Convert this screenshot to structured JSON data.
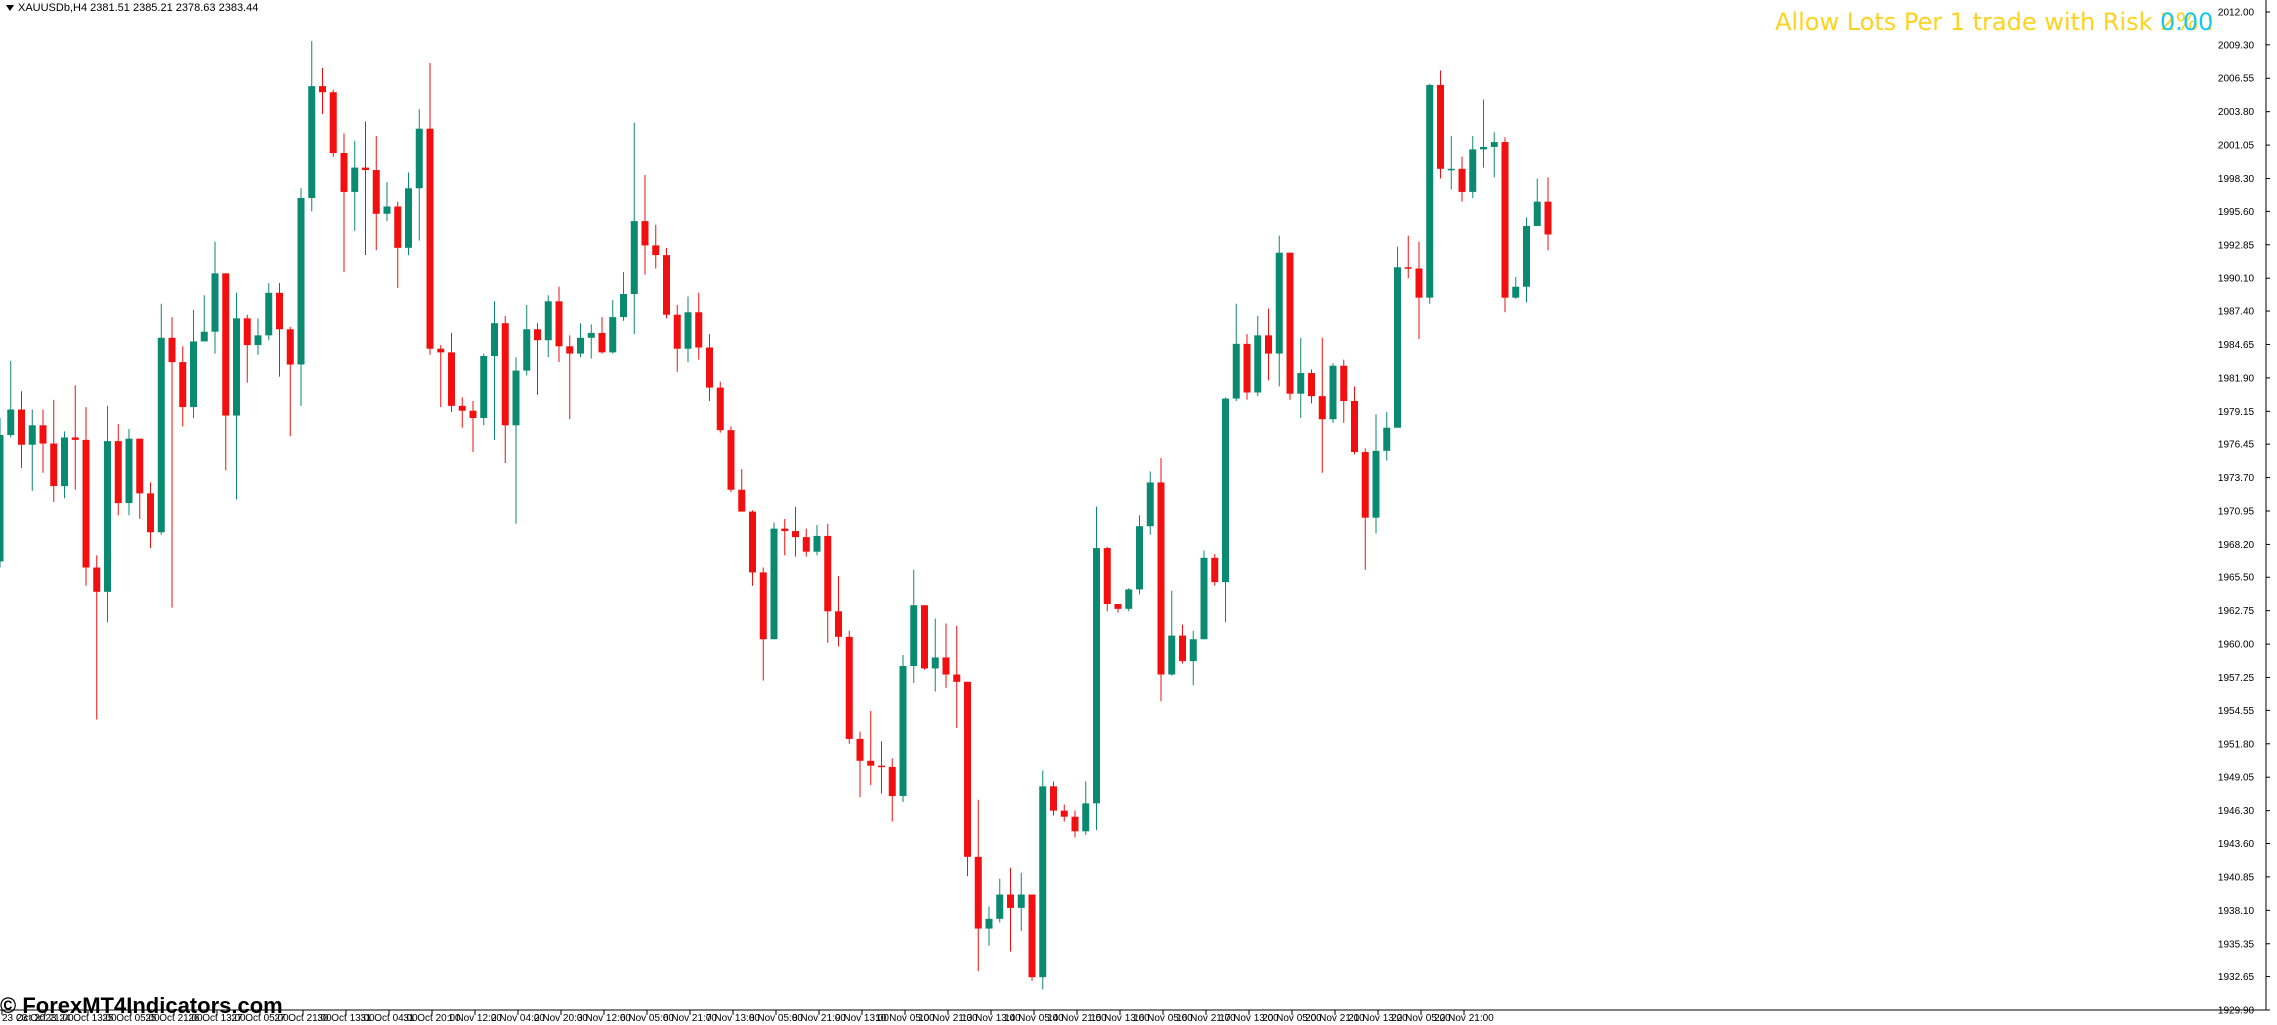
{
  "header": {
    "symbol_info": "XAUUSDb,H4  2381.51 2385.21 2378.63 2383.44"
  },
  "indicator": {
    "label": "Allow Lots Per 1 trade with Risk 2% :",
    "value": "0.00"
  },
  "watermark": "© ForexMT4Indicators.com",
  "colors": {
    "bull": "#0a8a70",
    "bear": "#f20f0f",
    "background": "#ffffff",
    "label": "#ffd21f",
    "value": "#15c8f5"
  },
  "chart_data": {
    "type": "candlestick",
    "ylim": [
      1929.9,
      2012.0
    ],
    "y_ticks": [
      "2012.00",
      "2009.30",
      "2006.55",
      "2003.80",
      "2001.05",
      "1998.30",
      "1995.60",
      "1992.85",
      "1990.10",
      "1987.40",
      "1984.65",
      "1981.90",
      "1979.15",
      "1976.45",
      "1973.70",
      "1970.95",
      "1968.20",
      "1965.50",
      "1962.75",
      "1960.00",
      "1957.25",
      "1954.55",
      "1951.80",
      "1949.05",
      "1946.30",
      "1943.60",
      "1940.85",
      "1938.10",
      "1935.35",
      "1932.65",
      "1929.90"
    ],
    "x_labels": [
      "23 Oct 2023",
      "23 Oct 21:00",
      "24 Oct 13:00",
      "25 Oct 05:00",
      "25 Oct 21:00",
      "26 Oct 13:00",
      "27 Oct 05:00",
      "27 Oct 21:00",
      "30 Oct 13:00",
      "31 Oct 04:00",
      "31 Oct 20:00",
      "1 Nov 12:00",
      "2 Nov 04:00",
      "2 Nov 20:00",
      "3 Nov 12:00",
      "6 Nov 05:00",
      "6 Nov 21:00",
      "7 Nov 13:00",
      "8 Nov 05:00",
      "8 Nov 21:00",
      "9 Nov 13:00",
      "10 Nov 05:00",
      "10 Nov 21:00",
      "13 Nov 13:00",
      "14 Nov 05:00",
      "14 Nov 21:00",
      "15 Nov 13:00",
      "16 Nov 05:00",
      "16 Nov 21:00",
      "17 Nov 13:00",
      "20 Nov 05:00",
      "20 Nov 21:00",
      "21 Nov 13:00",
      "22 Nov 05:00",
      "22 Nov 21:00"
    ],
    "candles": [
      [
        1966.8,
        1977.2,
        1966.3,
        1978.6
      ],
      [
        1977.2,
        1979.3,
        1977.0,
        1983.3
      ],
      [
        1979.3,
        1976.4,
        1974.5,
        1980.8
      ],
      [
        1976.4,
        1978.0,
        1972.6,
        1979.3
      ],
      [
        1978.0,
        1976.5,
        1974.1,
        1979.3
      ],
      [
        1976.5,
        1973.0,
        1971.7,
        1980.1
      ],
      [
        1973.0,
        1977.0,
        1972.0,
        1977.5
      ],
      [
        1977.0,
        1976.8,
        1972.7,
        1981.3
      ],
      [
        1976.8,
        1966.3,
        1964.8,
        1979.5
      ],
      [
        1966.3,
        1964.3,
        1953.8,
        1967.3
      ],
      [
        1964.3,
        1976.7,
        1961.8,
        1979.6
      ],
      [
        1976.7,
        1971.6,
        1970.6,
        1978.1
      ],
      [
        1971.6,
        1976.9,
        1970.6,
        1977.7
      ],
      [
        1976.9,
        1972.4,
        1970.3,
        1976.9
      ],
      [
        1972.4,
        1969.2,
        1967.9,
        1973.3
      ],
      [
        1969.2,
        1985.2,
        1969.0,
        1988.0
      ],
      [
        1985.2,
        1983.2,
        1963.0,
        1986.9
      ],
      [
        1983.2,
        1979.5,
        1977.9,
        1984.5
      ],
      [
        1979.5,
        1984.9,
        1978.6,
        1987.5
      ],
      [
        1984.9,
        1985.7,
        1984.9,
        1988.7
      ],
      [
        1985.7,
        1990.5,
        1983.9,
        1993.1
      ],
      [
        1990.5,
        1978.8,
        1974.3,
        1990.5
      ],
      [
        1978.8,
        1986.8,
        1971.9,
        1988.9
      ],
      [
        1986.8,
        1984.6,
        1981.5,
        1987.1
      ],
      [
        1984.6,
        1985.4,
        1983.8,
        1986.8
      ],
      [
        1985.4,
        1988.9,
        1985.0,
        1989.7
      ],
      [
        1988.9,
        1985.9,
        1982.0,
        1989.7
      ],
      [
        1985.9,
        1983.0,
        1977.1,
        1986.1
      ],
      [
        1983.0,
        1996.7,
        1979.6,
        1997.5
      ],
      [
        1996.7,
        2005.9,
        1995.6,
        2009.6
      ],
      [
        2005.9,
        2005.4,
        2003.6,
        2007.4
      ],
      [
        2005.4,
        2000.4,
        2000.1,
        2005.6
      ],
      [
        2000.4,
        1997.2,
        1990.6,
        2002.0
      ],
      [
        1997.2,
        1999.2,
        1994.0,
        2001.4
      ],
      [
        1999.2,
        1999.0,
        1992.0,
        2003.0
      ],
      [
        1999.0,
        1995.4,
        1992.4,
        2001.8
      ],
      [
        1995.4,
        1996.0,
        1994.8,
        1998.0
      ],
      [
        1996.0,
        1992.6,
        1989.3,
        1996.4
      ],
      [
        1992.6,
        1997.5,
        1992.0,
        1998.8
      ],
      [
        1997.5,
        2002.4,
        1993.2,
        2004.0
      ],
      [
        2002.4,
        1984.3,
        1983.8,
        2007.8
      ],
      [
        1984.3,
        1984.0,
        1979.5,
        1984.6
      ],
      [
        1984.0,
        1979.6,
        1979.1,
        1985.6
      ],
      [
        1979.6,
        1979.2,
        1977.8,
        1980.3
      ],
      [
        1979.2,
        1978.6,
        1975.8,
        1980.0
      ],
      [
        1978.6,
        1983.7,
        1978.0,
        1983.9
      ],
      [
        1983.7,
        1986.4,
        1976.8,
        1988.2
      ],
      [
        1986.4,
        1978.0,
        1974.9,
        1987.0
      ],
      [
        1978.0,
        1982.5,
        1969.9,
        1983.6
      ],
      [
        1982.5,
        1985.9,
        1982.1,
        1987.9
      ],
      [
        1985.9,
        1985.0,
        1980.5,
        1986.4
      ],
      [
        1985.0,
        1988.2,
        1983.6,
        1988.7
      ],
      [
        1988.2,
        1984.5,
        1983.2,
        1989.4
      ],
      [
        1984.5,
        1983.9,
        1978.5,
        1985.4
      ],
      [
        1983.9,
        1985.2,
        1983.6,
        1986.4
      ],
      [
        1985.2,
        1985.6,
        1983.5,
        1986.3
      ],
      [
        1985.6,
        1984.0,
        1983.9,
        1986.9
      ],
      [
        1984.0,
        1986.9,
        1983.9,
        1988.3
      ],
      [
        1986.9,
        1988.8,
        1986.6,
        1990.6
      ],
      [
        1988.8,
        1994.8,
        1985.5,
        2002.9
      ],
      [
        1994.8,
        1992.8,
        1990.4,
        1998.6
      ],
      [
        1992.8,
        1992.0,
        1990.9,
        1994.5
      ],
      [
        1992.0,
        1987.1,
        1986.8,
        1992.6
      ],
      [
        1987.1,
        1984.3,
        1982.4,
        1987.9
      ],
      [
        1984.3,
        1987.3,
        1983.2,
        1988.6
      ],
      [
        1987.3,
        1984.4,
        1983.4,
        1988.9
      ],
      [
        1984.4,
        1981.1,
        1980.0,
        1985.5
      ],
      [
        1981.1,
        1977.6,
        1977.4,
        1981.6
      ],
      [
        1977.6,
        1972.7,
        1972.5,
        1977.9
      ],
      [
        1972.7,
        1970.9,
        1970.9,
        1974.4
      ],
      [
        1970.9,
        1965.9,
        1964.8,
        1971.0
      ],
      [
        1965.9,
        1960.4,
        1957.0,
        1966.3
      ],
      [
        1960.4,
        1969.5,
        1960.4,
        1970.0
      ],
      [
        1969.5,
        1969.3,
        1967.3,
        1970.3
      ],
      [
        1969.3,
        1968.8,
        1967.2,
        1971.3
      ],
      [
        1968.8,
        1967.6,
        1967.2,
        1969.5
      ],
      [
        1967.6,
        1968.9,
        1967.3,
        1969.8
      ],
      [
        1968.9,
        1962.7,
        1960.1,
        1969.9
      ],
      [
        1962.7,
        1960.6,
        1959.8,
        1965.6
      ],
      [
        1960.6,
        1952.2,
        1951.8,
        1961.1
      ],
      [
        1952.2,
        1950.4,
        1947.4,
        1952.8
      ],
      [
        1950.4,
        1950.0,
        1948.4,
        1954.5
      ],
      [
        1950.0,
        1949.9,
        1947.7,
        1952.0
      ],
      [
        1949.9,
        1947.5,
        1945.4,
        1950.6
      ],
      [
        1947.5,
        1958.2,
        1947.0,
        1959.1
      ],
      [
        1958.2,
        1963.2,
        1956.8,
        1966.1
      ],
      [
        1963.2,
        1958.0,
        1957.9,
        1963.2
      ],
      [
        1958.0,
        1958.9,
        1956.1,
        1962.1
      ],
      [
        1958.9,
        1957.5,
        1956.4,
        1961.7
      ],
      [
        1957.5,
        1956.9,
        1953.1,
        1961.5
      ],
      [
        1956.9,
        1942.5,
        1940.9,
        1956.9
      ],
      [
        1942.5,
        1936.6,
        1933.1,
        1947.2
      ],
      [
        1936.6,
        1937.4,
        1935.2,
        1938.4
      ],
      [
        1937.4,
        1939.4,
        1937.1,
        1940.7
      ],
      [
        1939.4,
        1938.3,
        1934.7,
        1941.6
      ],
      [
        1938.3,
        1939.4,
        1936.4,
        1941.2
      ],
      [
        1939.4,
        1932.6,
        1932.3,
        1939.4
      ],
      [
        1932.6,
        1948.3,
        1931.6,
        1949.6
      ],
      [
        1948.3,
        1946.3,
        1945.9,
        1948.7
      ],
      [
        1946.3,
        1945.8,
        1945.4,
        1946.8
      ],
      [
        1945.8,
        1944.6,
        1944.1,
        1946.3
      ],
      [
        1944.6,
        1946.9,
        1944.3,
        1948.7
      ],
      [
        1946.9,
        1967.9,
        1944.7,
        1971.3
      ],
      [
        1967.9,
        1963.3,
        1962.7,
        1968.0
      ],
      [
        1963.3,
        1962.9,
        1962.6,
        1963.2
      ],
      [
        1962.9,
        1964.5,
        1962.7,
        1964.6
      ],
      [
        1964.5,
        1969.7,
        1964.1,
        1970.6
      ],
      [
        1969.7,
        1973.3,
        1969.0,
        1974.2
      ],
      [
        1973.3,
        1957.5,
        1955.3,
        1975.3
      ],
      [
        1957.5,
        1960.7,
        1957.4,
        1964.4
      ],
      [
        1960.7,
        1958.6,
        1958.4,
        1961.6
      ],
      [
        1958.6,
        1960.4,
        1956.6,
        1961.1
      ],
      [
        1960.4,
        1967.1,
        1960.4,
        1967.7
      ],
      [
        1967.1,
        1965.1,
        1964.8,
        1967.4
      ],
      [
        1965.1,
        1980.2,
        1961.8,
        1980.3
      ],
      [
        1980.2,
        1984.7,
        1980.0,
        1988.0
      ],
      [
        1984.7,
        1980.7,
        1980.1,
        1985.5
      ],
      [
        1980.7,
        1985.4,
        1980.4,
        1987.0
      ],
      [
        1985.4,
        1983.9,
        1981.7,
        1987.6
      ],
      [
        1983.9,
        1992.2,
        1981.2,
        1993.6
      ],
      [
        1992.2,
        1980.6,
        1980.1,
        1992.2
      ],
      [
        1980.6,
        1982.3,
        1978.6,
        1985.2
      ],
      [
        1982.3,
        1980.4,
        1979.8,
        1982.6
      ],
      [
        1980.4,
        1978.5,
        1974.1,
        1985.2
      ],
      [
        1978.5,
        1982.9,
        1978.2,
        1983.1
      ],
      [
        1982.9,
        1980.0,
        1978.2,
        1983.4
      ],
      [
        1980.0,
        1975.8,
        1975.6,
        1981.2
      ],
      [
        1975.8,
        1970.4,
        1966.1,
        1976.1
      ],
      [
        1970.4,
        1975.9,
        1969.1,
        1978.9
      ],
      [
        1975.9,
        1977.8,
        1975.1,
        1979.1
      ],
      [
        1977.8,
        1991.0,
        1977.8,
        1992.7
      ],
      [
        1991.0,
        1990.9,
        1990.1,
        1993.6
      ],
      [
        1990.9,
        1988.5,
        1985.1,
        1993.1
      ],
      [
        1988.5,
        2006.0,
        1988.0,
        2006.1
      ],
      [
        2006.0,
        1999.1,
        1998.3,
        2007.2
      ],
      [
        1999.1,
        1999.1,
        1997.4,
        2001.8
      ],
      [
        1999.1,
        1997.2,
        1996.4,
        2000.1
      ],
      [
        1997.2,
        2000.7,
        1996.7,
        2001.8
      ],
      [
        2000.7,
        2000.9,
        1999.2,
        2004.8
      ],
      [
        2000.9,
        2001.3,
        1998.4,
        2002.1
      ],
      [
        2001.3,
        1988.5,
        1987.3,
        2001.7
      ],
      [
        1988.5,
        1989.4,
        1988.4,
        1990.2
      ],
      [
        1989.4,
        1994.4,
        1988.1,
        1995.1
      ],
      [
        1994.4,
        1996.4,
        1995.2,
        1998.3
      ],
      [
        1996.4,
        1993.7,
        1992.4,
        1998.4
      ]
    ]
  }
}
